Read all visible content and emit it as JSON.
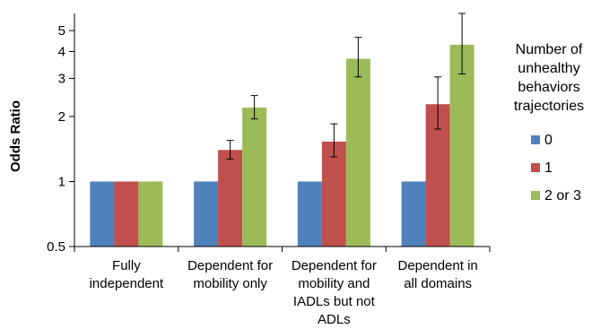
{
  "chart_data": {
    "type": "bar",
    "ylabel": "Odds Ratio",
    "yscale": "log",
    "ylim": [
      0.5,
      6
    ],
    "yticks": [
      0.5,
      1,
      2,
      3,
      4,
      5
    ],
    "ytick_labels": [
      "0.5",
      "1",
      "2",
      "3",
      "4",
      "5"
    ],
    "categories": [
      [
        "Fully",
        "independent"
      ],
      [
        "Dependent for",
        "mobility only"
      ],
      [
        "Dependent for",
        "mobility and",
        "IADLs but not",
        "ADLs"
      ],
      [
        "Dependent in",
        "all domains"
      ]
    ],
    "legend": {
      "title": [
        "Number of",
        "unhealthy",
        "behaviors",
        "trajectories"
      ],
      "placement": "right"
    },
    "series": [
      {
        "name": "0",
        "color": "#4F81BD",
        "values": [
          1,
          1,
          1,
          1
        ],
        "error_low": [
          null,
          null,
          null,
          null
        ],
        "error_high": [
          null,
          null,
          null,
          null
        ]
      },
      {
        "name": "1",
        "color": "#C0504D",
        "values": [
          1,
          1.4,
          1.53,
          2.28
        ],
        "error_low": [
          null,
          1.27,
          1.3,
          1.75
        ],
        "error_high": [
          null,
          1.55,
          1.85,
          3.05
        ]
      },
      {
        "name": "2 or 3",
        "color": "#9BBB59",
        "values": [
          1,
          2.2,
          3.7,
          4.3
        ],
        "error_low": [
          null,
          1.95,
          3.05,
          3.15
        ],
        "error_high": [
          null,
          2.5,
          4.65,
          6.0
        ]
      }
    ],
    "grid": false
  }
}
